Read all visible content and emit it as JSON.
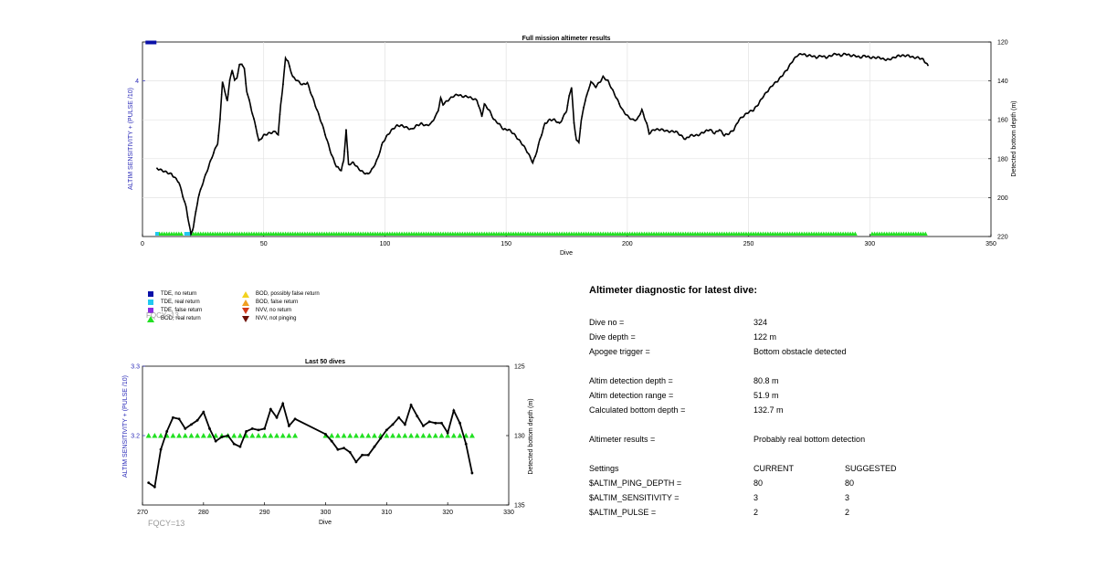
{
  "colors": {
    "tde_no_return": "#0a10a8",
    "tde_real_return": "#21c8f0",
    "tde_false_return": "#8a2be2",
    "bod_real_return": "#22e022",
    "bod_possibly_false": "#f2d21e",
    "bod_false_return": "#f0a020",
    "nvv_no_return": "#d23a1c",
    "nvv_not_pinging": "#6e1008",
    "line": "#000000",
    "left_axis": "#2b2bb8",
    "fqcy": "#9a9a9a"
  },
  "legend": [
    {
      "label": "TDE, no return",
      "marker": "square",
      "color_key": "tde_no_return"
    },
    {
      "label": "TDE, real return",
      "marker": "square",
      "color_key": "tde_real_return"
    },
    {
      "label": "TDE, false return",
      "marker": "square",
      "color_key": "tde_false_return"
    },
    {
      "label": "BOD, real return",
      "marker": "triangle-up",
      "color_key": "bod_real_return"
    },
    {
      "label": "BOD, possibly false return",
      "marker": "triangle-up",
      "color_key": "bod_possibly_false"
    },
    {
      "label": "BOD, false return",
      "marker": "triangle-up",
      "color_key": "bod_false_return"
    },
    {
      "label": "NVV, no return",
      "marker": "triangle-down",
      "color_key": "nvv_no_return"
    },
    {
      "label": "NVV, not pinging",
      "marker": "triangle-down",
      "color_key": "nvv_not_pinging"
    }
  ],
  "fqcy_legend": "FQCY=13",
  "fqcy_bottom": "FQCY=13",
  "chart_data": [
    {
      "type": "line",
      "title": "Full mission altimeter results",
      "xlabel": "Dive",
      "ylabel_left": "ALTIM SENSITIVITY + (PULSE /10)",
      "ylabel_right": "Detected bottom depth (m)",
      "xlim": [
        0,
        350
      ],
      "xticks": [
        0,
        50,
        100,
        150,
        200,
        250,
        300,
        350
      ],
      "ylim_right": [
        220,
        120
      ],
      "yticks_right": [
        120,
        140,
        160,
        180,
        200,
        220
      ],
      "yticks_left": [
        "4"
      ],
      "grid": true,
      "depth_keypoints": [
        [
          6,
          185
        ],
        [
          10,
          187
        ],
        [
          12,
          188
        ],
        [
          15,
          192
        ],
        [
          18,
          205
        ],
        [
          20,
          219
        ],
        [
          21,
          215
        ],
        [
          23,
          200
        ],
        [
          25,
          192
        ],
        [
          27,
          185
        ],
        [
          29,
          178
        ],
        [
          31,
          172
        ],
        [
          32,
          160
        ],
        [
          33,
          140
        ],
        [
          34,
          146
        ],
        [
          35,
          150
        ],
        [
          36,
          140
        ],
        [
          37,
          134
        ],
        [
          38,
          140
        ],
        [
          39,
          138
        ],
        [
          40,
          132
        ],
        [
          41,
          131
        ],
        [
          42,
          134
        ],
        [
          43,
          145
        ],
        [
          45,
          155
        ],
        [
          47,
          165
        ],
        [
          48,
          171
        ],
        [
          50,
          168
        ],
        [
          52,
          167
        ],
        [
          55,
          166
        ],
        [
          56,
          168
        ],
        [
          57,
          152
        ],
        [
          58,
          142
        ],
        [
          59,
          128
        ],
        [
          60,
          130
        ],
        [
          62,
          138
        ],
        [
          64,
          140
        ],
        [
          66,
          142
        ],
        [
          68,
          141
        ],
        [
          70,
          148
        ],
        [
          72,
          155
        ],
        [
          74,
          162
        ],
        [
          76,
          170
        ],
        [
          78,
          178
        ],
        [
          80,
          184
        ],
        [
          82,
          186
        ],
        [
          83,
          181
        ],
        [
          84,
          165
        ],
        [
          85,
          183
        ],
        [
          87,
          182
        ],
        [
          89,
          185
        ],
        [
          91,
          187
        ],
        [
          93,
          188
        ],
        [
          95,
          185
        ],
        [
          97,
          180
        ],
        [
          99,
          172
        ],
        [
          101,
          168
        ],
        [
          103,
          165
        ],
        [
          105,
          163
        ],
        [
          107,
          163
        ],
        [
          109,
          164
        ],
        [
          111,
          165
        ],
        [
          113,
          163
        ],
        [
          115,
          162
        ],
        [
          117,
          163
        ],
        [
          119,
          162
        ],
        [
          121,
          158
        ],
        [
          122,
          155
        ],
        [
          123,
          149
        ],
        [
          124,
          152
        ],
        [
          126,
          150
        ],
        [
          128,
          148
        ],
        [
          130,
          147
        ],
        [
          132,
          148
        ],
        [
          134,
          148
        ],
        [
          136,
          149
        ],
        [
          138,
          150
        ],
        [
          140,
          158
        ],
        [
          141,
          152
        ],
        [
          143,
          155
        ],
        [
          145,
          160
        ],
        [
          147,
          162
        ],
        [
          149,
          165
        ],
        [
          151,
          165
        ],
        [
          153,
          167
        ],
        [
          155,
          170
        ],
        [
          157,
          173
        ],
        [
          159,
          177
        ],
        [
          161,
          182
        ],
        [
          162,
          179
        ],
        [
          164,
          170
        ],
        [
          166,
          162
        ],
        [
          168,
          160
        ],
        [
          170,
          160
        ],
        [
          172,
          162
        ],
        [
          173,
          160
        ],
        [
          175,
          155
        ],
        [
          176,
          148
        ],
        [
          177,
          143
        ],
        [
          178,
          162
        ],
        [
          179,
          170
        ],
        [
          180,
          172
        ],
        [
          181,
          160
        ],
        [
          183,
          148
        ],
        [
          184,
          145
        ],
        [
          185,
          140
        ],
        [
          186,
          142
        ],
        [
          187,
          143
        ],
        [
          189,
          140
        ],
        [
          190,
          138
        ],
        [
          192,
          140
        ],
        [
          194,
          145
        ],
        [
          196,
          150
        ],
        [
          198,
          155
        ],
        [
          200,
          158
        ],
        [
          202,
          160
        ],
        [
          204,
          160
        ],
        [
          206,
          155
        ],
        [
          208,
          162
        ],
        [
          209,
          167
        ],
        [
          211,
          165
        ],
        [
          214,
          165
        ],
        [
          217,
          166
        ],
        [
          220,
          166
        ],
        [
          222,
          168
        ],
        [
          224,
          170
        ],
        [
          226,
          168
        ],
        [
          229,
          168
        ],
        [
          232,
          166
        ],
        [
          234,
          165
        ],
        [
          236,
          167
        ],
        [
          238,
          165
        ],
        [
          240,
          168
        ],
        [
          242,
          167
        ],
        [
          244,
          165
        ],
        [
          246,
          160
        ],
        [
          248,
          158
        ],
        [
          250,
          156
        ],
        [
          252,
          155
        ],
        [
          254,
          152
        ],
        [
          256,
          148
        ],
        [
          258,
          145
        ],
        [
          260,
          142
        ],
        [
          262,
          140
        ],
        [
          264,
          137
        ],
        [
          266,
          134
        ],
        [
          268,
          130
        ],
        [
          270,
          127
        ],
        [
          272,
          126
        ],
        [
          274,
          127
        ],
        [
          276,
          127
        ],
        [
          278,
          128
        ],
        [
          280,
          127
        ],
        [
          282,
          128
        ],
        [
          284,
          127
        ],
        [
          286,
          126
        ],
        [
          288,
          127
        ],
        [
          290,
          126
        ],
        [
          292,
          127
        ],
        [
          294,
          127
        ],
        [
          296,
          128
        ],
        [
          298,
          127
        ],
        [
          300,
          128
        ],
        [
          302,
          128
        ],
        [
          304,
          128
        ],
        [
          306,
          129
        ],
        [
          308,
          129
        ],
        [
          310,
          128
        ],
        [
          312,
          127
        ],
        [
          314,
          127
        ],
        [
          316,
          127
        ],
        [
          318,
          128
        ],
        [
          320,
          128
        ],
        [
          322,
          129
        ],
        [
          324,
          132
        ]
      ],
      "bod_real_return_ranges": [
        [
          7,
          16
        ],
        [
          20,
          294
        ],
        [
          301,
          323
        ]
      ],
      "tde_real_return_dives": [
        6,
        18,
        19
      ],
      "tde_no_return_dives": [
        2,
        3,
        4,
        5
      ]
    },
    {
      "type": "line",
      "title": "Last 50 dives",
      "xlabel": "Dive",
      "ylabel_left": "ALTIM SENSITIVITY + (PULSE /10)",
      "ylabel_right": "Detected bottom depth (m)",
      "xlim": [
        270,
        330
      ],
      "xticks": [
        270,
        280,
        290,
        300,
        310,
        320,
        330
      ],
      "ylim_left": [
        3.1,
        3.3
      ],
      "yticks_left": [
        "3.2",
        "3.3"
      ],
      "ylim_right": [
        125,
        135
      ],
      "yticks_right": [
        125,
        130,
        135
      ],
      "grid": false,
      "depth": [
        [
          271,
          133.4
        ],
        [
          272,
          133.7
        ],
        [
          273,
          131.0
        ],
        [
          274,
          129.7
        ],
        [
          275,
          128.7
        ],
        [
          276,
          128.8
        ],
        [
          277,
          129.5
        ],
        [
          278,
          129.2
        ],
        [
          279,
          128.9
        ],
        [
          280,
          128.3
        ],
        [
          281,
          129.5
        ],
        [
          282,
          130.4
        ],
        [
          283,
          130.1
        ],
        [
          284,
          130.0
        ],
        [
          285,
          130.6
        ],
        [
          286,
          130.8
        ],
        [
          287,
          129.7
        ],
        [
          288,
          129.5
        ],
        [
          289,
          129.6
        ],
        [
          290,
          129.5
        ],
        [
          291,
          128.1
        ],
        [
          292,
          128.7
        ],
        [
          293,
          127.7
        ],
        [
          294,
          129.3
        ],
        [
          295,
          128.8
        ],
        [
          300,
          129.9
        ],
        [
          301,
          130.4
        ],
        [
          302,
          131.0
        ],
        [
          303,
          130.9
        ],
        [
          304,
          131.2
        ],
        [
          305,
          131.9
        ],
        [
          306,
          131.4
        ],
        [
          307,
          131.4
        ],
        [
          308,
          130.8
        ],
        [
          309,
          130.2
        ],
        [
          310,
          129.6
        ],
        [
          311,
          129.2
        ],
        [
          312,
          128.7
        ],
        [
          313,
          129.2
        ],
        [
          314,
          127.8
        ],
        [
          315,
          128.6
        ],
        [
          316,
          129.3
        ],
        [
          317,
          129.0
        ],
        [
          318,
          129.1
        ],
        [
          319,
          129.1
        ],
        [
          320,
          129.8
        ],
        [
          321,
          128.2
        ],
        [
          322,
          129.1
        ],
        [
          323,
          130.6
        ],
        [
          324,
          132.7
        ]
      ],
      "bod_real_return_dives": [
        271,
        272,
        273,
        274,
        275,
        276,
        277,
        278,
        279,
        280,
        281,
        282,
        283,
        284,
        285,
        286,
        287,
        288,
        289,
        290,
        291,
        292,
        293,
        294,
        295,
        300,
        301,
        302,
        303,
        304,
        305,
        306,
        307,
        308,
        309,
        310,
        311,
        312,
        313,
        314,
        315,
        316,
        317,
        318,
        319,
        320,
        321,
        322,
        323,
        324
      ],
      "bod_level_left": 3.2
    }
  ],
  "diagnostic": {
    "title": "Altimeter diagnostic for latest dive:",
    "rows": [
      {
        "label": "Dive no =",
        "value": "324",
        "suggested": ""
      },
      {
        "label": "Dive depth =",
        "value": "122 m",
        "suggested": ""
      },
      {
        "label": "Apogee trigger =",
        "value": "Bottom obstacle detected",
        "suggested": ""
      },
      {
        "label": "Altim detection depth =",
        "value": "80.8 m",
        "suggested": ""
      },
      {
        "label": "Altim detection range =",
        "value": "51.9 m",
        "suggested": ""
      },
      {
        "label": "Calculated bottom depth =",
        "value": "132.7 m",
        "suggested": ""
      },
      {
        "label": "Altimeter results =",
        "value": "Probably real bottom detection",
        "suggested": ""
      },
      {
        "label": "Settings",
        "value": "CURRENT",
        "suggested": "SUGGESTED"
      },
      {
        "label": "$ALTIM_PING_DEPTH =",
        "value": "80",
        "suggested": "80"
      },
      {
        "label": "$ALTIM_SENSITIVITY =",
        "value": "3",
        "suggested": "3"
      },
      {
        "label": "$ALTIM_PULSE =",
        "value": "2",
        "suggested": "2"
      }
    ]
  }
}
